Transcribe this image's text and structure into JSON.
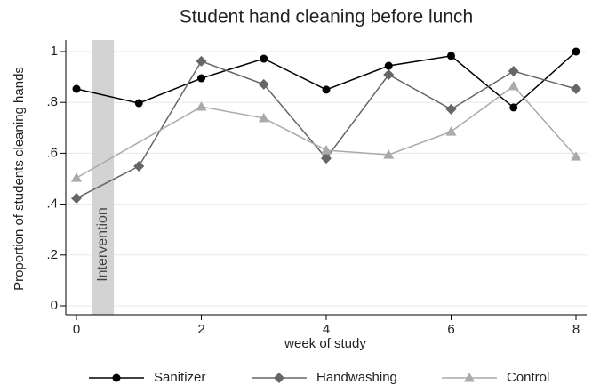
{
  "chart_data": {
    "type": "line",
    "title": "Student hand cleaning before lunch",
    "xlabel": "week of study",
    "ylabel": "Proportion of students cleaning hands",
    "x": [
      0,
      1,
      2,
      3,
      4,
      5,
      6,
      7,
      8
    ],
    "series": [
      {
        "name": "Sanitizer",
        "color": "#000000",
        "marker": "circle",
        "values": [
          0.853,
          0.797,
          0.895,
          0.972,
          0.85,
          0.944,
          0.983,
          0.78,
          1.0
        ]
      },
      {
        "name": "Handwashing",
        "color": "#666666",
        "marker": "diamond",
        "values": [
          0.423,
          0.549,
          0.962,
          0.871,
          0.58,
          0.909,
          0.773,
          0.923,
          0.853
        ]
      },
      {
        "name": "Control",
        "color": "#aaaaaa",
        "marker": "triangle",
        "x": [
          0,
          2,
          3,
          4,
          5,
          6,
          7,
          8
        ],
        "values": [
          0.503,
          0.783,
          0.738,
          0.612,
          0.594,
          0.685,
          0.864,
          0.587
        ]
      }
    ],
    "shade": {
      "label": "Intervention",
      "x": [
        0.25,
        0.6
      ],
      "color": "#d3d3d3"
    },
    "xlim": [
      0,
      8
    ],
    "xticks": [
      0,
      2,
      4,
      6,
      8
    ],
    "ylim": [
      0,
      1
    ],
    "yticks": [
      0,
      {
        "value": 0.2,
        "label": ".2"
      },
      {
        "value": 0.4,
        "label": ".4"
      },
      {
        "value": 0.6,
        "label": ".6"
      },
      {
        "value": 0.8,
        "label": ".8"
      },
      1
    ],
    "grid": true,
    "legend": "bottom"
  }
}
